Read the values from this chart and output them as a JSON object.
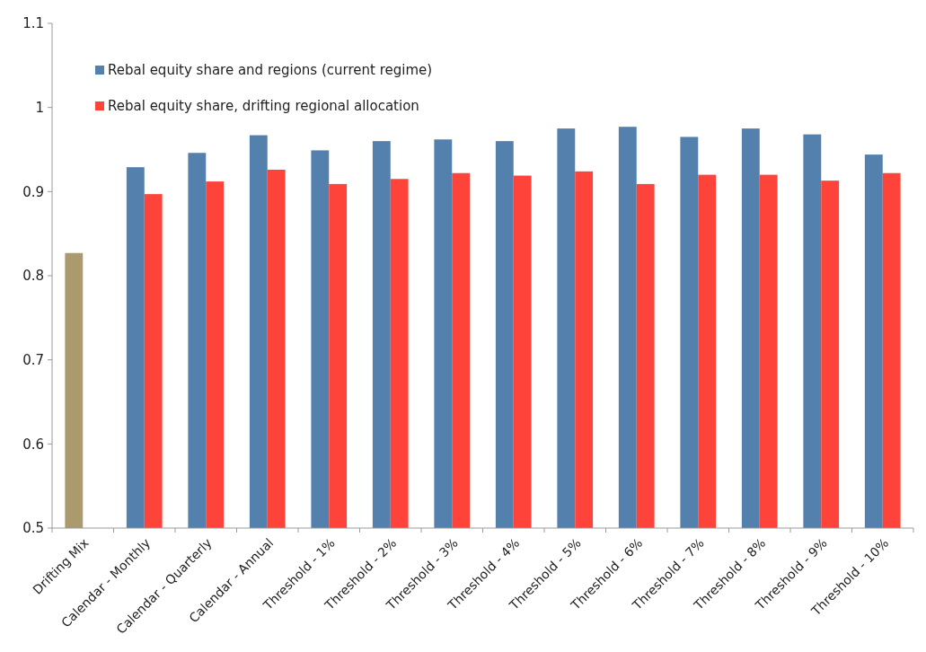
{
  "chart_data": {
    "type": "bar",
    "categories": [
      "Drifting Mix",
      "Calendar - Monthly",
      "Calendar - Quarterly",
      "Calendar - Annual",
      "Threshold - 1%",
      "Threshold - 2%",
      "Threshold - 3%",
      "Threshold - 4%",
      "Threshold - 5%",
      "Threshold - 6%",
      "Threshold - 7%",
      "Threshold - 8%",
      "Threshold - 9%",
      "Threshold - 10%"
    ],
    "series": [
      {
        "name": "Rebal equity share and regions (current regime)",
        "color": "#5380ac",
        "colors": [
          "#aa9a6e",
          "#5380ac",
          "#5380ac",
          "#5380ac",
          "#5380ac",
          "#5380ac",
          "#5380ac",
          "#5380ac",
          "#5380ac",
          "#5380ac",
          "#5380ac",
          "#5380ac",
          "#5380ac",
          "#5380ac"
        ],
        "values": [
          0.827,
          0.929,
          0.946,
          0.967,
          0.949,
          0.96,
          0.962,
          0.96,
          0.975,
          0.977,
          0.965,
          0.975,
          0.968,
          0.944
        ]
      },
      {
        "name": "Rebal equity share, drifting regional allocation",
        "color": "#fe433b",
        "values": [
          null,
          0.897,
          0.912,
          0.926,
          0.909,
          0.915,
          0.922,
          0.919,
          0.924,
          0.909,
          0.92,
          0.92,
          0.913,
          0.922
        ]
      }
    ],
    "ylim": [
      0.5,
      1.1
    ],
    "yticks": [
      0.5,
      0.6,
      0.7,
      0.8,
      0.9,
      1,
      1.1
    ],
    "grid": false,
    "legend": "top left"
  }
}
